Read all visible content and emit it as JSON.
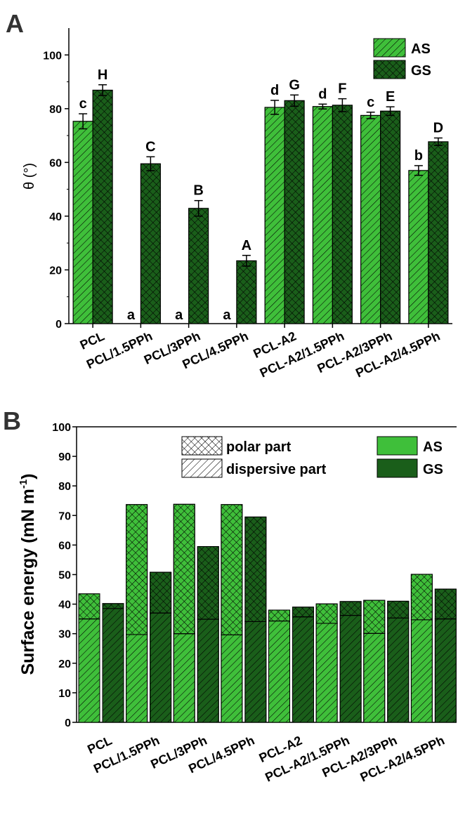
{
  "panels": {
    "a_label": "A",
    "b_label": "B"
  },
  "colors": {
    "as": "#3fbf3a",
    "gs": "#1a5e1a",
    "error": "#000000"
  },
  "chart_data": [
    {
      "type": "bar",
      "ylabel": "θ (°)",
      "ylim": [
        0,
        110
      ],
      "yticks": [
        0,
        20,
        40,
        60,
        80,
        100
      ],
      "categories": [
        "PCL",
        "PCL/1.5PPh",
        "PCL/3PPh",
        "PCL/4.5PPh",
        "PCL-A2",
        "PCL-A2/1.5PPh",
        "PCL-A2/3PPh",
        "PCL-A2/4.5PPh"
      ],
      "legend": {
        "placement": "top-right",
        "entries": [
          "AS",
          "GS"
        ]
      },
      "series": [
        {
          "name": "AS",
          "values": [
            75.3,
            0,
            0,
            0,
            80.5,
            80.8,
            77.5,
            57.0
          ],
          "errors": [
            2.8,
            0,
            0,
            0,
            2.6,
            0.9,
            1.2,
            1.8
          ],
          "labels": [
            "c",
            "a",
            "a",
            "a",
            "d",
            "d",
            "c",
            "b"
          ]
        },
        {
          "name": "GS",
          "values": [
            86.9,
            59.5,
            42.9,
            23.4,
            83.0,
            81.3,
            79.1,
            67.7
          ],
          "errors": [
            2.0,
            2.6,
            2.9,
            2.0,
            2.1,
            2.4,
            1.6,
            1.4
          ],
          "labels": [
            "H",
            "C",
            "B",
            "A",
            "G",
            "F",
            "E",
            "D"
          ]
        }
      ]
    },
    {
      "type": "bar",
      "stacked": true,
      "ylabel": "Surface energy (mN m",
      "ylabel_sup": "-1",
      "ylabel_close": ")",
      "ylim": [
        0,
        100
      ],
      "yticks": [
        0,
        10,
        20,
        30,
        40,
        50,
        60,
        70,
        80,
        90,
        100
      ],
      "categories": [
        "PCL",
        "PCL/1.5PPh",
        "PCL/3PPh",
        "PCL/4.5PPh",
        "PCL-A2",
        "PCL-A2/1.5PPh",
        "PCL-A2/3PPh",
        "PCL-A2/4.5PPh"
      ],
      "legend": {
        "placement": "top",
        "pattern_entries": [
          "polar part",
          "dispersive part"
        ],
        "color_entries": [
          "AS",
          "GS"
        ]
      },
      "series": [
        {
          "name": "AS",
          "dispersive": [
            35.0,
            29.7,
            30.0,
            29.6,
            34.3,
            33.5,
            30.1,
            34.7
          ],
          "polar": [
            8.5,
            44.0,
            43.8,
            44.1,
            3.7,
            6.6,
            11.2,
            15.4
          ]
        },
        {
          "name": "GS",
          "dispersive": [
            38.5,
            37.0,
            34.9,
            34.1,
            35.7,
            36.2,
            35.3,
            35.0
          ],
          "polar": [
            1.7,
            13.8,
            24.6,
            35.4,
            3.3,
            4.7,
            5.7,
            10.1
          ]
        }
      ]
    }
  ]
}
